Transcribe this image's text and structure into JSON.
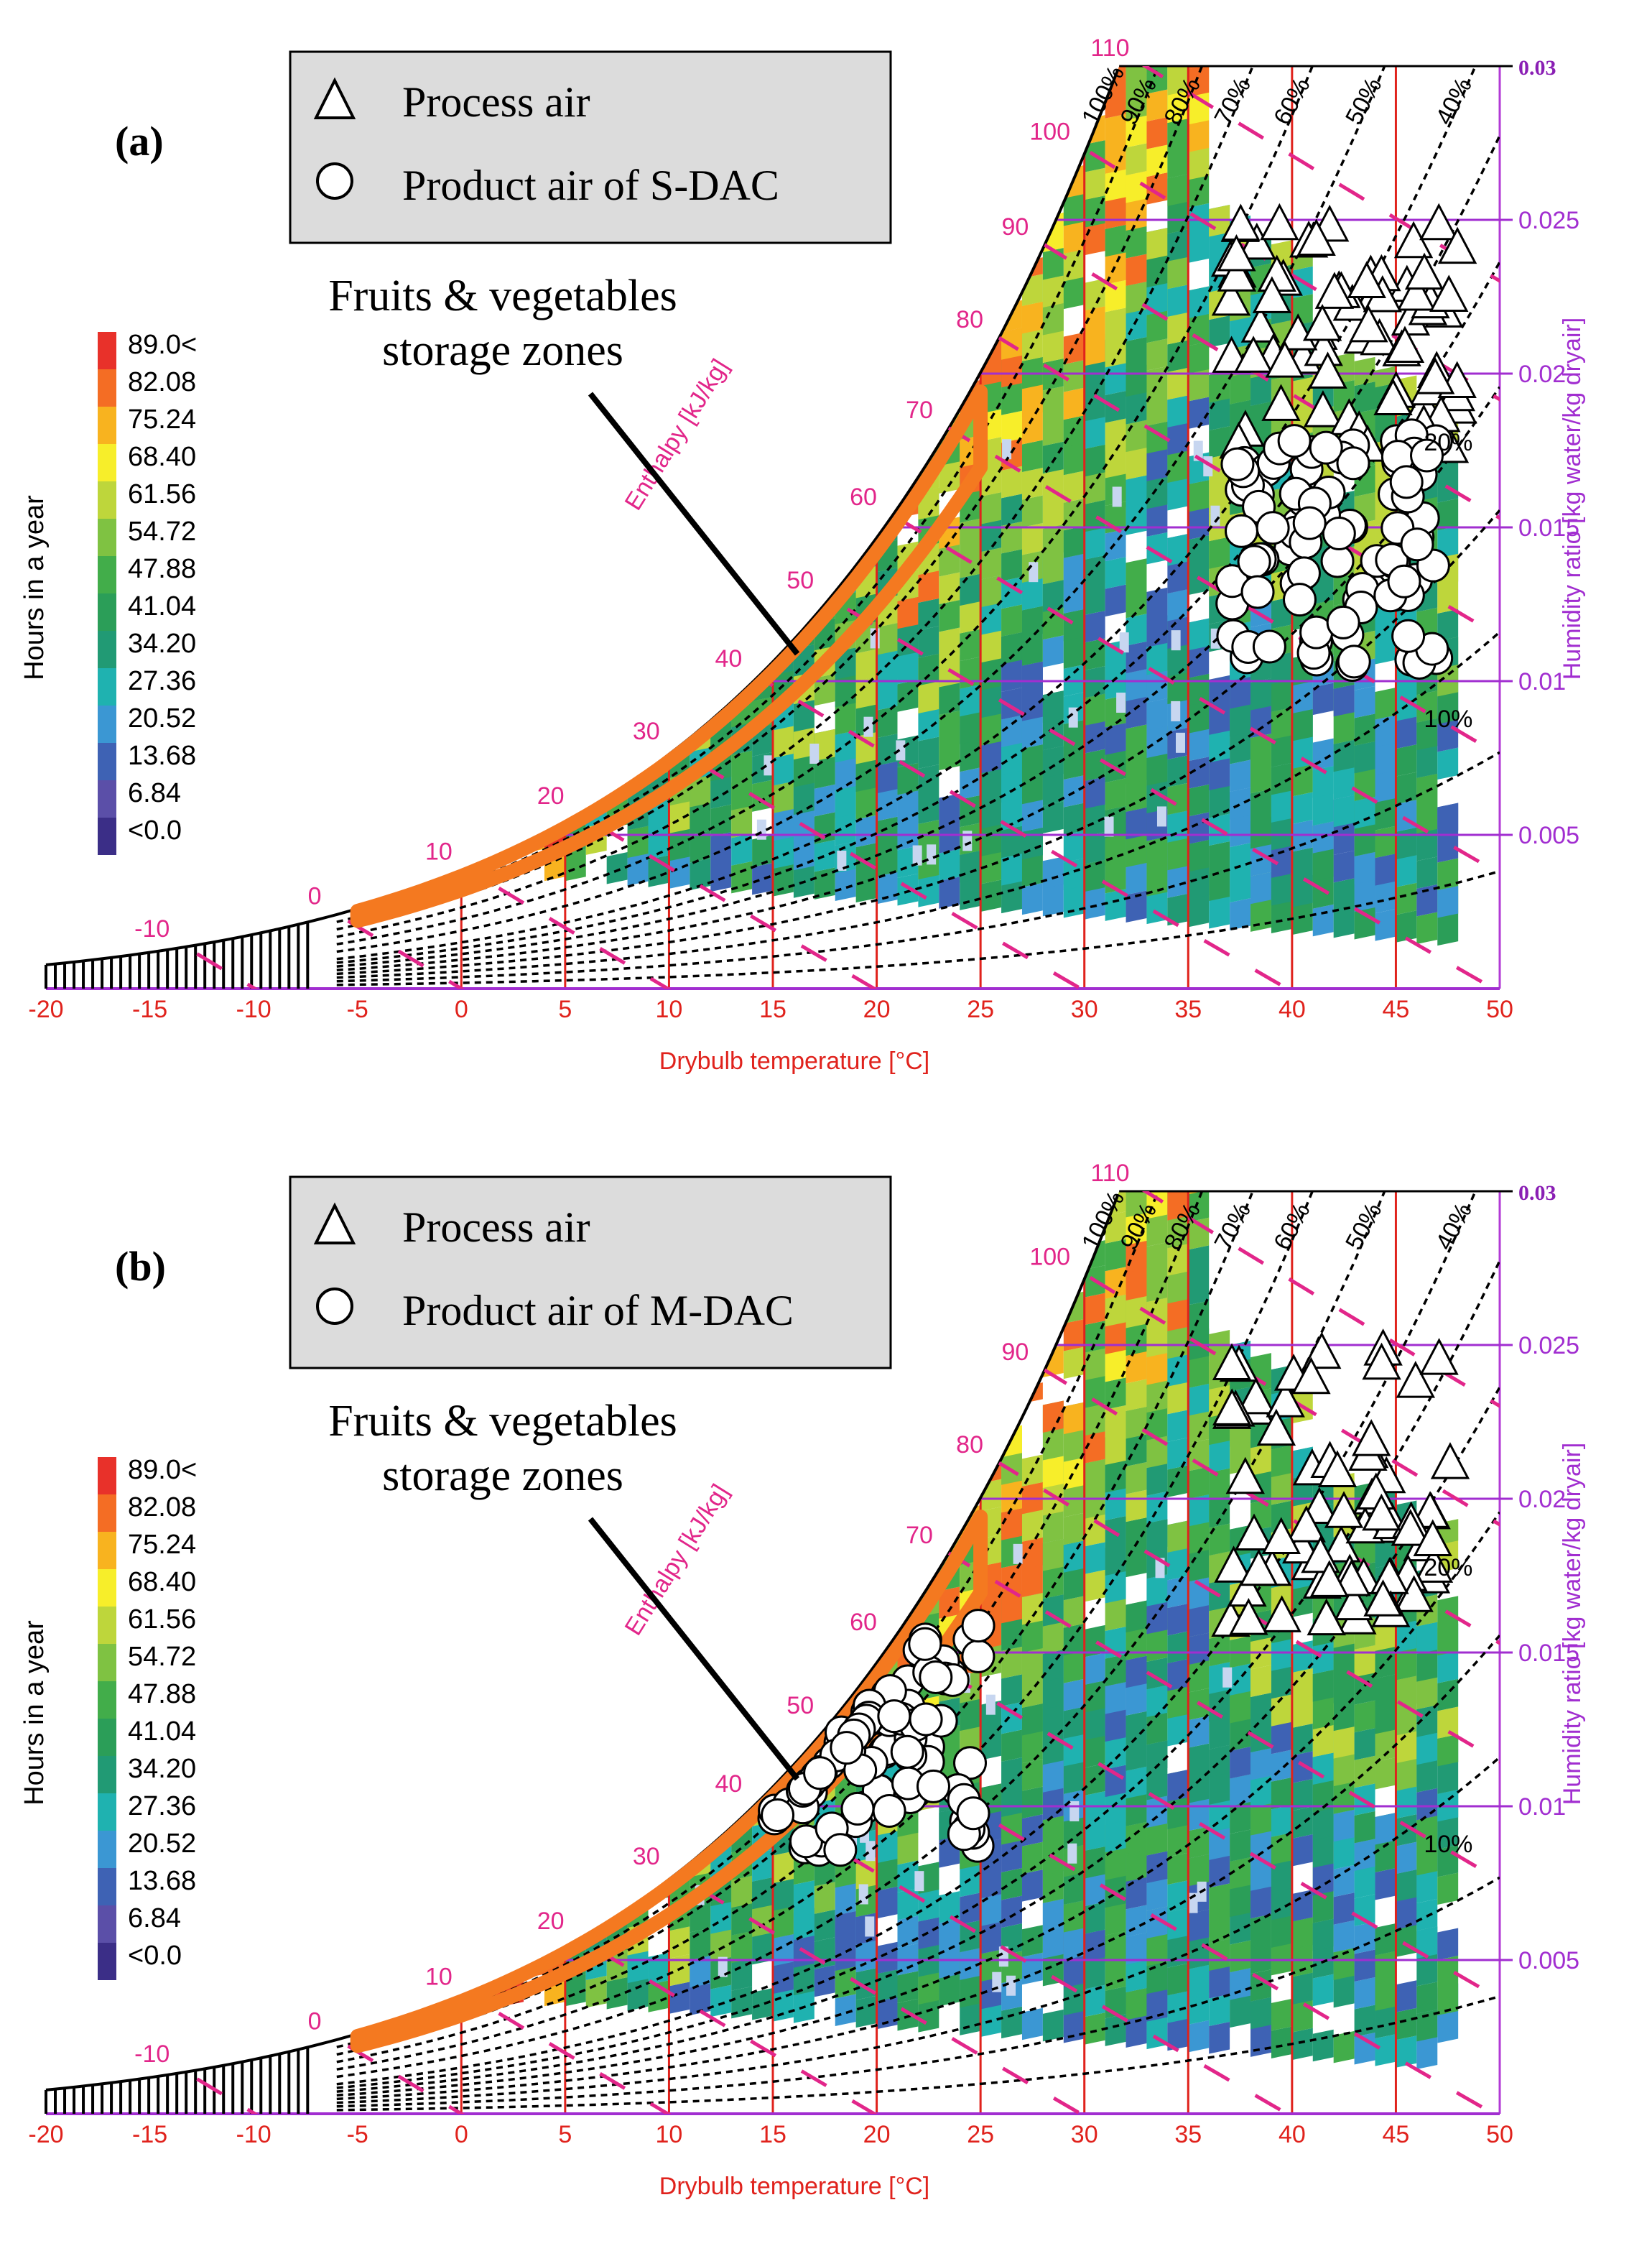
{
  "chart_data": [
    {
      "type": "heatmap",
      "panel_label": "(a)",
      "subtype": "psychrometric chart",
      "xlabel": "Drybulb temperature [°C]",
      "ylabel_right": "Humidity ratio [kg water/kg dryair]",
      "ylabel_left": "Hours in a year",
      "enthalpy_label": "Enthalpy [kJ/kg]",
      "x_ticks": [
        "-20",
        "-15",
        "-10",
        "-5",
        "0",
        "5",
        "10",
        "15",
        "20",
        "25",
        "30",
        "35",
        "40",
        "45",
        "50"
      ],
      "xlim": [
        -20,
        50
      ],
      "y_ticks": [
        "0.005",
        "0.01",
        "0.015",
        "0.02",
        "0.025",
        "0.03"
      ],
      "ylim": [
        0,
        0.03
      ],
      "enthalpy_ticks": [
        "-10",
        "0",
        "10",
        "20",
        "30",
        "40",
        "50",
        "60",
        "70",
        "80",
        "90",
        "100",
        "110"
      ],
      "rh_labels": [
        "100%",
        "90%",
        "80%",
        "70%",
        "60%",
        "50%",
        "40%",
        "20%",
        "10%"
      ],
      "colorbar": {
        "labels": [
          "89.0<",
          "82.08",
          "75.24",
          "68.40",
          "61.56",
          "54.72",
          "47.88",
          "41.04",
          "34.20",
          "27.36",
          "20.52",
          "13.68",
          "6.84",
          "<0.0"
        ],
        "colors": [
          "#e8312a",
          "#f46d24",
          "#f8b31f",
          "#f7ee2a",
          "#bed63b",
          "#7fc242",
          "#42ad4a",
          "#2b9e58",
          "#219a74",
          "#1fb2b0",
          "#3b97d3",
          "#3e62b4",
          "#5b4fa8",
          "#3b2e87"
        ]
      },
      "legend": [
        {
          "marker": "triangle",
          "label": "Process air"
        },
        {
          "marker": "circle",
          "label": "Product air of S-DAC"
        }
      ],
      "annotation": {
        "line1": "Fruits & vegetables",
        "line2": "storage zones"
      },
      "storage_zone": {
        "t_range": [
          -5,
          25
        ],
        "color": "#f47920"
      },
      "process_air_region": {
        "t_range": [
          37,
          48
        ],
        "w_range": [
          0.0175,
          0.025
        ]
      },
      "product_air_region": {
        "t_range": [
          37,
          47
        ],
        "w_range": [
          0.0105,
          0.018
        ]
      }
    },
    {
      "type": "heatmap",
      "panel_label": "(b)",
      "subtype": "psychrometric chart",
      "xlabel": "Drybulb temperature [°C]",
      "ylabel_right": "Humidity ratio [kg water/kg dryair]",
      "ylabel_left": "Hours in a year",
      "enthalpy_label": "Enthalpy [kJ/kg]",
      "x_ticks": [
        "-20",
        "-15",
        "-10",
        "-5",
        "0",
        "5",
        "10",
        "15",
        "20",
        "25",
        "30",
        "35",
        "40",
        "45",
        "50"
      ],
      "xlim": [
        -20,
        50
      ],
      "y_ticks": [
        "0.005",
        "0.01",
        "0.015",
        "0.02",
        "0.025",
        "0.03"
      ],
      "ylim": [
        0,
        0.03
      ],
      "enthalpy_ticks": [
        "-10",
        "0",
        "10",
        "20",
        "30",
        "40",
        "50",
        "60",
        "70",
        "80",
        "90",
        "100",
        "110"
      ],
      "rh_labels": [
        "100%",
        "90%",
        "80%",
        "70%",
        "60%",
        "50%",
        "40%",
        "20%",
        "10%"
      ],
      "colorbar": {
        "labels": [
          "89.0<",
          "82.08",
          "75.24",
          "68.40",
          "61.56",
          "54.72",
          "47.88",
          "41.04",
          "34.20",
          "27.36",
          "20.52",
          "13.68",
          "6.84",
          "<0.0"
        ],
        "colors": [
          "#e8312a",
          "#f46d24",
          "#f8b31f",
          "#f7ee2a",
          "#bed63b",
          "#7fc242",
          "#42ad4a",
          "#2b9e58",
          "#219a74",
          "#1fb2b0",
          "#3b97d3",
          "#3e62b4",
          "#5b4fa8",
          "#3b2e87"
        ]
      },
      "legend": [
        {
          "marker": "triangle",
          "label": "Process air"
        },
        {
          "marker": "circle",
          "label": "Product air of M-DAC"
        }
      ],
      "annotation": {
        "line1": "Fruits & vegetables",
        "line2": "storage zones"
      },
      "storage_zone": {
        "t_range": [
          -5,
          25
        ],
        "color": "#f47920"
      },
      "process_air_region": {
        "t_range": [
          37,
          48
        ],
        "w_range": [
          0.016,
          0.025
        ]
      },
      "product_air_region": {
        "t_range": [
          15,
          25
        ],
        "w_range": [
          0.0085,
          0.0165
        ]
      }
    }
  ]
}
